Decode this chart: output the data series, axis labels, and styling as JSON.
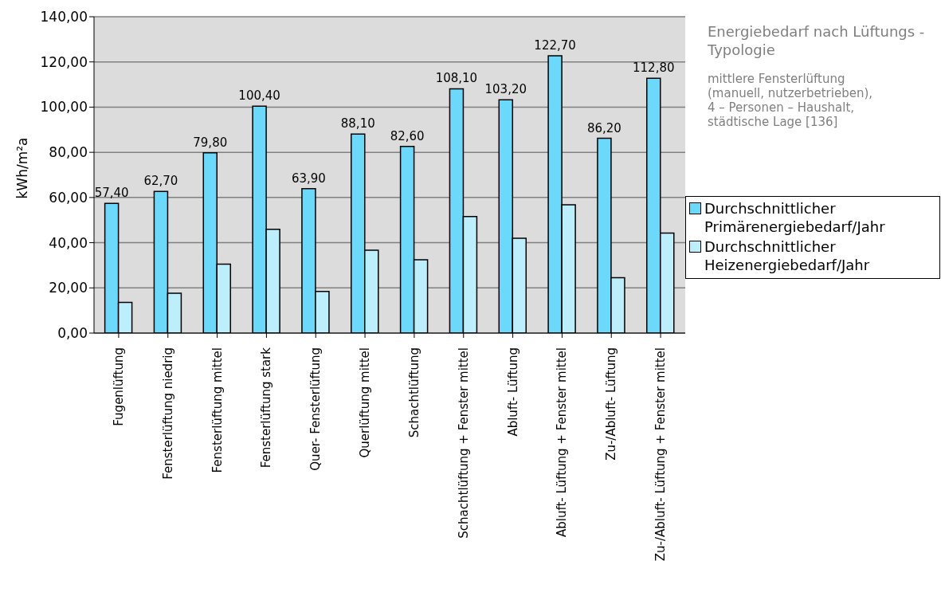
{
  "chart_data": {
    "type": "bar",
    "title": "Energiebedarf nach Lüftungs - Typologie",
    "ylabel": "kWh/m²a",
    "annotations": [
      "mittlere Fensterlüftung\n(manuell, nutzerbetrieben),\n4 – Personen – Haushalt,\nstädtische Lage [136]"
    ],
    "categories": [
      "Fugenlüftung",
      "Fensterlüftung niedrig",
      "Fensterlüftung mittel",
      "Fensterlüftung stark",
      "Quer- Fensterlüftung",
      "Querlüftung mittel",
      "Schachtlüftung",
      "Schachtlüftung + Fenster mittel",
      "Abluft- Lüftung",
      "Abluft- Lüftung + Fenster mittel",
      "Zu-/Abluft- Lüftung",
      "Zu-/Abluft- Lüftung + Fenster mittel"
    ],
    "series": [
      {
        "name": "Durchschnittlicher Primärenergiebedarf/Jahr",
        "color": "#6cd9fa",
        "values": [
          57.4,
          62.7,
          79.8,
          100.4,
          63.9,
          88.1,
          82.6,
          108.1,
          103.2,
          122.7,
          86.2,
          112.8
        ],
        "value_labels": [
          "57,40",
          "62,70",
          "79,80",
          "100,40",
          "63,90",
          "88,10",
          "82,60",
          "108,10",
          "103,20",
          "122,70",
          "86,20",
          "112,80"
        ]
      },
      {
        "name": "Durchschnittlicher Heizenergiebedarf/Jahr",
        "color": "#bdeefb",
        "values": [
          13.6,
          17.6,
          30.5,
          45.9,
          18.4,
          36.7,
          32.4,
          51.6,
          42.0,
          56.8,
          24.5,
          44.3
        ]
      }
    ],
    "ylim": [
      0,
      140
    ],
    "yticks": [
      {
        "value": 0,
        "label": "0,00"
      },
      {
        "value": 20,
        "label": "20,00"
      },
      {
        "value": 40,
        "label": "40,00"
      },
      {
        "value": 60,
        "label": "60,00"
      },
      {
        "value": 80,
        "label": "80,00"
      },
      {
        "value": 100,
        "label": "100,00"
      },
      {
        "value": 120,
        "label": "120,00"
      },
      {
        "value": 140,
        "label": "140,00"
      }
    ],
    "grid": "y",
    "legend": "right"
  }
}
